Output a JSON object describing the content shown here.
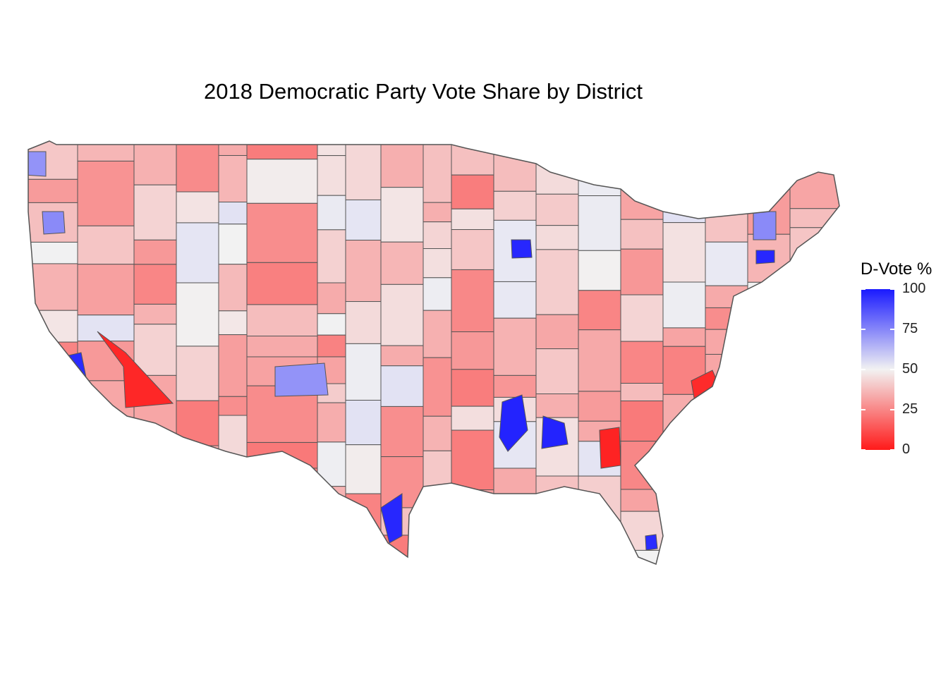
{
  "title": "2018 Democratic Party Vote Share by District",
  "legend": {
    "title": "D-Vote %",
    "ticks": [
      {
        "value": 100,
        "label": "100"
      },
      {
        "value": 75,
        "label": "75"
      },
      {
        "value": 50,
        "label": "50"
      },
      {
        "value": 25,
        "label": "25"
      },
      {
        "value": 0,
        "label": "0"
      }
    ],
    "color_low": "#ff1a1a",
    "color_mid": "#f2f2f2",
    "color_high": "#1a1aff"
  },
  "map": {
    "region": "contiguous United States",
    "unit": "congressional district",
    "border_color": "#555555"
  }
}
